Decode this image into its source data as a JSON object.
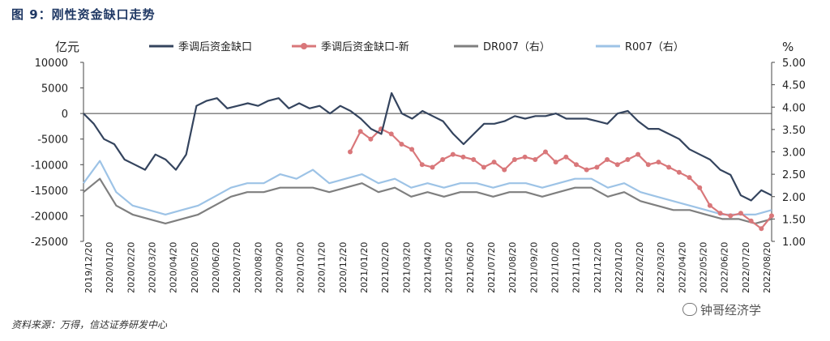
{
  "figure": {
    "title": "图 9：刚性资金缺口走势",
    "source": "资料来源：万得，信达证券研发中心",
    "watermark": "钟哥经济学"
  },
  "chart_data": {
    "type": "line",
    "title": "刚性资金缺口走势",
    "left_axis": {
      "unit": "亿元",
      "range": [
        -25000,
        10000
      ],
      "ticks": [
        "10000",
        "5000",
        "0",
        "-5000",
        "-10000",
        "-15000",
        "-20000",
        "-25000"
      ]
    },
    "right_axis": {
      "unit": "%",
      "range": [
        1.0,
        5.0
      ],
      "ticks": [
        "5.00",
        "4.50",
        "4.00",
        "3.50",
        "3.00",
        "2.50",
        "2.00",
        "1.50",
        "1.00"
      ]
    },
    "x_ticks": [
      "2019/12/20",
      "2020/01/20",
      "2020/02/20",
      "2020/03/20",
      "2020/04/20",
      "2020/05/20",
      "2020/06/20",
      "2020/07/20",
      "2020/08/20",
      "2020/09/20",
      "2020/10/20",
      "2020/11/20",
      "2020/12/20",
      "2021/01/20",
      "2021/02/20",
      "2021/03/20",
      "2021/04/20",
      "2021/05/20",
      "2021/06/20",
      "2021/07/20",
      "2021/08/20",
      "2021/09/20",
      "2021/10/20",
      "2021/11/20",
      "2021/12/20",
      "2022/01/20",
      "2022/02/20",
      "2022/03/20",
      "2022/04/20",
      "2022/05/20",
      "2022/06/20",
      "2022/07/20",
      "2022/08/20"
    ],
    "legend_position": "top",
    "grid": false,
    "series": [
      {
        "name": "季调后资金缺口",
        "axis": "left",
        "color": "#34445e",
        "style": "line",
        "values": [
          0,
          -2000,
          -5000,
          -6000,
          -9000,
          -10000,
          -11000,
          -8000,
          -9000,
          -11000,
          -8000,
          1500,
          2500,
          3000,
          1000,
          1500,
          2000,
          1500,
          2500,
          3000,
          1000,
          2000,
          1000,
          1500,
          0,
          1500,
          500,
          -1000,
          -3000,
          -4000,
          4000,
          0,
          -1000,
          500,
          -500,
          -1500,
          -4000,
          -6000,
          -4000,
          -2000,
          -2000,
          -1500,
          -500,
          -1000,
          -500,
          -500,
          0,
          -1000,
          -1000,
          -1000,
          -1500,
          -2000,
          0,
          500,
          -1500,
          -3000,
          -3000,
          -4000,
          -5000,
          -7000,
          -8000,
          -9000,
          -11000,
          -12000,
          -16000,
          -17000,
          -15000,
          -16000
        ]
      },
      {
        "name": "季调后资金缺口-新",
        "axis": "left",
        "color": "#d9777a",
        "style": "line-marker",
        "values": [
          -7500,
          -3500,
          -5000,
          -3000,
          -4000,
          -6000,
          -7000,
          -10000,
          -10500,
          -9000,
          -8000,
          -8500,
          -9000,
          -10500,
          -9500,
          -11000,
          -9000,
          -8500,
          -9000,
          -7500,
          -9500,
          -8500,
          -10000,
          -11000,
          -10500,
          -9000,
          -10000,
          -9000,
          -8000,
          -10000,
          -9500,
          -10500,
          -11500,
          -12500,
          -14500,
          -18000,
          -19500,
          -20000,
          -19500,
          -21000,
          -22500,
          -20000
        ]
      },
      {
        "name": "DR007（右）",
        "axis": "right",
        "color": "#7f7f7f",
        "style": "line",
        "values": [
          2.1,
          2.4,
          1.8,
          1.6,
          1.5,
          1.4,
          1.5,
          1.6,
          1.8,
          2.0,
          2.1,
          2.1,
          2.2,
          2.2,
          2.2,
          2.1,
          2.2,
          2.3,
          2.1,
          2.2,
          2.0,
          2.1,
          2.0,
          2.1,
          2.1,
          2.0,
          2.1,
          2.1,
          2.0,
          2.1,
          2.2,
          2.2,
          2.0,
          2.1,
          1.9,
          1.8,
          1.7,
          1.7,
          1.6,
          1.5,
          1.5,
          1.4,
          1.5
        ]
      },
      {
        "name": "R007（右）",
        "axis": "right",
        "color": "#9dc3e6",
        "style": "line",
        "values": [
          2.3,
          2.8,
          2.1,
          1.8,
          1.7,
          1.6,
          1.7,
          1.8,
          2.0,
          2.2,
          2.3,
          2.3,
          2.5,
          2.4,
          2.6,
          2.3,
          2.4,
          2.5,
          2.3,
          2.4,
          2.2,
          2.3,
          2.2,
          2.3,
          2.3,
          2.2,
          2.3,
          2.3,
          2.2,
          2.3,
          2.4,
          2.4,
          2.2,
          2.3,
          2.1,
          2.0,
          1.9,
          1.8,
          1.7,
          1.6,
          1.6,
          1.6,
          1.7
        ]
      }
    ]
  }
}
